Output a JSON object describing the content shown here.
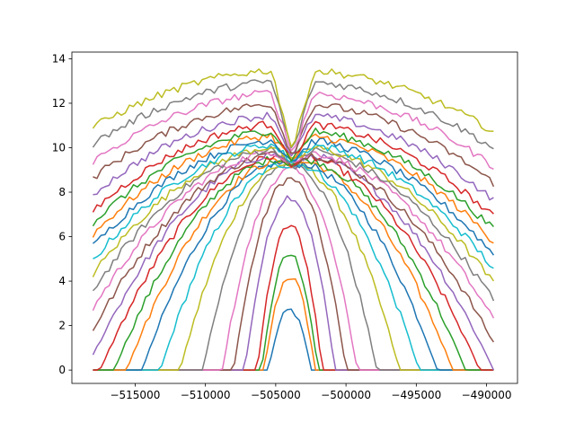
{
  "chart_data": {
    "type": "line",
    "title": "",
    "xlabel": "",
    "ylabel": "",
    "xlim": [
      -519500,
      -487800
    ],
    "ylim": [
      -0.6,
      14.3
    ],
    "x_range": [
      -518000,
      -489500
    ],
    "n_points": 100,
    "peak_x": -504000,
    "converge_x": -503800,
    "converge_y": 9.2,
    "xticks": [
      -515000,
      -510000,
      -505000,
      -500000,
      -495000,
      -490000
    ],
    "xtick_labels": [
      "−515000",
      "−510000",
      "−505000",
      "−500000",
      "−495000",
      "−490000"
    ],
    "yticks": [
      0,
      2,
      4,
      6,
      8,
      10,
      12,
      14
    ],
    "ytick_labels": [
      "0",
      "2",
      "4",
      "6",
      "8",
      "10",
      "12",
      "14"
    ],
    "grid": false,
    "legend": "none",
    "series": [
      {
        "color": "#1f77b4",
        "peak": 2.7,
        "half_width": 1500
      },
      {
        "color": "#ff7f0e",
        "peak": 4.2,
        "half_width": 1800
      },
      {
        "color": "#2ca02c",
        "peak": 5.2,
        "half_width": 2000
      },
      {
        "color": "#d62728",
        "peak": 6.5,
        "half_width": 2300
      },
      {
        "color": "#9467bd",
        "peak": 7.8,
        "half_width": 3200
      },
      {
        "color": "#8c564b",
        "peak": 8.6,
        "half_width": 4000
      },
      {
        "color": "#e377c2",
        "peak": 9.0,
        "half_width": 4800
      },
      {
        "color": "#7f7f7f",
        "peak": 9.3,
        "half_width": 6200
      },
      {
        "color": "#bcbd22",
        "peak": 9.3,
        "half_width": 7800
      },
      {
        "color": "#17becf",
        "peak": 9.3,
        "half_width": 9200
      },
      {
        "color": "#1f77b4",
        "peak": 9.4,
        "half_width": 10500
      },
      {
        "color": "#ff7f0e",
        "peak": 9.5,
        "half_width": 11600
      },
      {
        "color": "#2ca02c",
        "peak": 9.6,
        "half_width": 12500
      },
      {
        "color": "#d62728",
        "peak": 9.7,
        "half_width": 13500
      },
      {
        "color": "#9467bd",
        "peak": 9.8,
        "half_width": 14500
      },
      {
        "color": "#8c564b",
        "peak": 9.8,
        "half_width": 15500
      },
      {
        "color": "#e377c2",
        "peak": 9.9,
        "half_width": 16500
      },
      {
        "color": "#7f7f7f",
        "peak": 10.0,
        "half_width": 17500
      },
      {
        "color": "#bcbd22",
        "peak": 10.1,
        "half_width": 18500
      },
      {
        "color": "#17becf",
        "peak": 10.2,
        "half_width": 19500
      },
      {
        "color": "#1f77b4",
        "peak": 10.4,
        "half_width": 20500
      },
      {
        "color": "#ff7f0e",
        "peak": 10.6,
        "half_width": 21500
      },
      {
        "color": "#2ca02c",
        "peak": 10.8,
        "half_width": 22500
      },
      {
        "color": "#d62728",
        "peak": 11.1,
        "half_width": 23500
      },
      {
        "color": "#9467bd",
        "peak": 11.5,
        "half_width": 25000
      },
      {
        "color": "#8c564b",
        "peak": 12.0,
        "half_width": 26500
      },
      {
        "color": "#e377c2",
        "peak": 12.5,
        "half_width": 28000
      },
      {
        "color": "#7f7f7f",
        "peak": 13.0,
        "half_width": 30000
      },
      {
        "color": "#bcbd22",
        "peak": 13.5,
        "half_width": 32000
      }
    ]
  }
}
